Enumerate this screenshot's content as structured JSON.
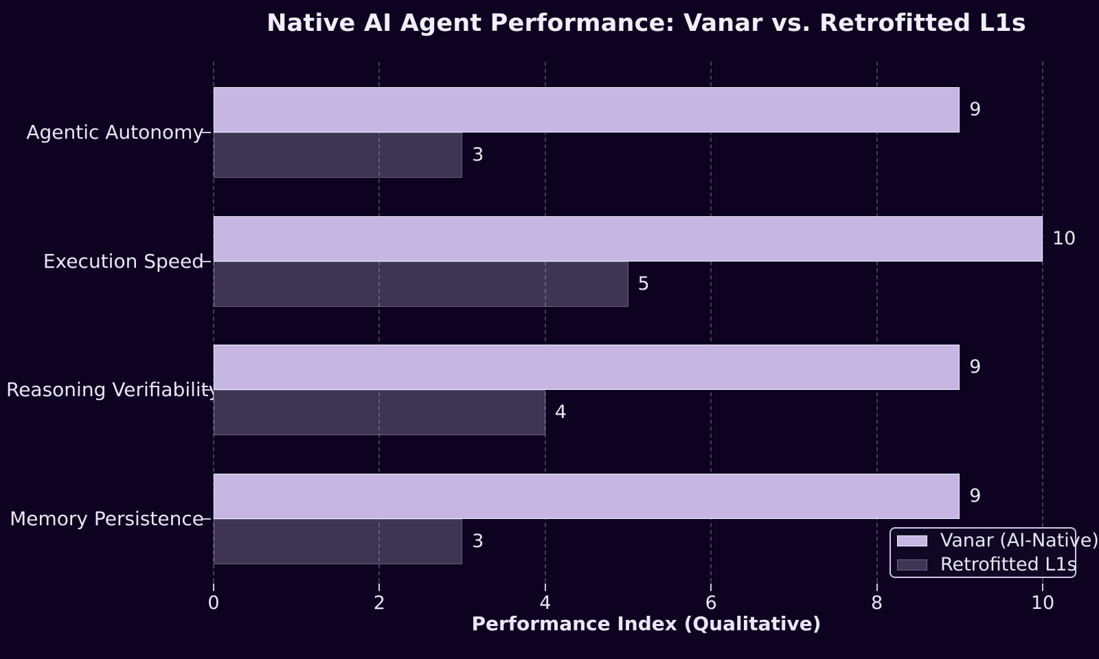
{
  "chart_data": {
    "type": "bar",
    "orientation": "horizontal",
    "title": "Native AI Agent Performance: Vanar vs. Retrofitted L1s",
    "xlabel": "Performance Index (Qualitative)",
    "categories": [
      "Agentic Autonomy",
      "Execution Speed",
      "Reasoning Verifiability",
      "Memory Persistence"
    ],
    "series": [
      {
        "name": "Vanar (AI-Native)",
        "values": [
          9,
          10,
          9,
          9
        ],
        "color": "#c5b6e4"
      },
      {
        "name": "Retrofitted L1s",
        "values": [
          3,
          5,
          4,
          3
        ],
        "color": "#3e3454"
      }
    ],
    "xlim": [
      0,
      10
    ],
    "xticks": [
      0,
      2,
      4,
      6,
      8,
      10
    ],
    "grid": "vertical dashed gridlines drawn over bars",
    "bar_value_labels": true,
    "legend_position": "lower right"
  },
  "colors": {
    "background": "#0d0321",
    "bar_vanar": "#c5b6e4",
    "bar_retrofitted": "#3e3454",
    "bar_edge": "#f8f6fd",
    "text": "#eae6f5",
    "grid": "#c6bee2",
    "legend_border": "#cfc8e6"
  }
}
